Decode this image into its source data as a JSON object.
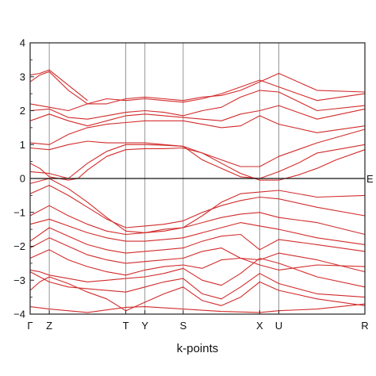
{
  "chart_data": {
    "type": "line",
    "title": "",
    "xlabel": "k-points",
    "ylabel": "",
    "ylim": [
      -4,
      4
    ],
    "yticks": [
      -4,
      -3,
      -2,
      -1,
      0,
      1,
      2,
      3,
      4
    ],
    "k_points": [
      {
        "label": "Γ",
        "x": 0
      },
      {
        "label": "Z",
        "x": 1
      },
      {
        "label": "T",
        "x": 5
      },
      {
        "label": "Y",
        "x": 6
      },
      {
        "label": "S",
        "x": 8
      },
      {
        "label": "X",
        "x": 12
      },
      {
        "label": "U",
        "x": 13
      },
      {
        "label": "R",
        "x": 17.5
      }
    ],
    "fermi_level": {
      "label": "E",
      "value": 0
    },
    "line_color": "#d22b2b",
    "bands": [
      [
        [
          0,
          -3.78
        ],
        [
          1,
          -3.85
        ],
        [
          3,
          -3.95
        ],
        [
          5,
          -3.8
        ],
        [
          6,
          -3.78
        ],
        [
          8,
          -3.85
        ],
        [
          10,
          -3.92
        ],
        [
          12,
          -3.95
        ],
        [
          13,
          -3.9
        ],
        [
          15,
          -3.85
        ],
        [
          17.5,
          -3.7
        ]
      ],
      [
        [
          0,
          -3.3
        ],
        [
          0.5,
          -3.05
        ],
        [
          1,
          -2.9
        ],
        [
          2,
          -3.1
        ],
        [
          3,
          -3.35
        ],
        [
          4,
          -3.55
        ],
        [
          5,
          -3.9
        ],
        [
          6,
          -3.65
        ],
        [
          7,
          -3.4
        ],
        [
          8,
          -3.2
        ],
        [
          9,
          -3.6
        ],
        [
          10,
          -3.75
        ],
        [
          11,
          -3.5
        ],
        [
          12,
          -3.05
        ],
        [
          13,
          -3.3
        ],
        [
          15,
          -3.55
        ],
        [
          17.5,
          -3.75
        ]
      ],
      [
        [
          0,
          -2.75
        ],
        [
          0.5,
          -2.9
        ],
        [
          1,
          -3.05
        ],
        [
          2,
          -3.2
        ],
        [
          4,
          -3.3
        ],
        [
          5,
          -3.35
        ],
        [
          6,
          -3.2
        ],
        [
          7,
          -3.05
        ],
        [
          8,
          -2.95
        ],
        [
          9,
          -3.4
        ],
        [
          10,
          -3.55
        ],
        [
          11,
          -3.2
        ],
        [
          12,
          -2.8
        ],
        [
          13,
          -3.1
        ],
        [
          15,
          -3.4
        ],
        [
          17.5,
          -3.5
        ]
      ],
      [
        [
          0,
          -2.7
        ],
        [
          0.5,
          -2.75
        ],
        [
          1,
          -2.85
        ],
        [
          2,
          -2.95
        ],
        [
          3,
          -3.05
        ],
        [
          4,
          -3.0
        ],
        [
          5,
          -2.95
        ],
        [
          6,
          -2.9
        ],
        [
          7,
          -2.8
        ],
        [
          8,
          -2.65
        ],
        [
          9,
          -3.0
        ],
        [
          10,
          -3.15
        ],
        [
          11,
          -2.8
        ],
        [
          12,
          -2.35
        ],
        [
          13,
          -2.5
        ],
        [
          15,
          -2.9
        ],
        [
          17.5,
          -3.2
        ]
      ],
      [
        [
          0,
          -2.35
        ],
        [
          1,
          -2.1
        ],
        [
          2,
          -2.4
        ],
        [
          3,
          -2.6
        ],
        [
          4,
          -2.75
        ],
        [
          5,
          -2.85
        ],
        [
          6,
          -2.7
        ],
        [
          7,
          -2.6
        ],
        [
          8,
          -2.55
        ],
        [
          9,
          -2.65
        ],
        [
          10,
          -2.4
        ],
        [
          11,
          -2.35
        ],
        [
          12,
          -2.55
        ],
        [
          13,
          -2.7
        ],
        [
          15,
          -2.55
        ],
        [
          17.5,
          -2.6
        ]
      ],
      [
        [
          0,
          -2.05
        ],
        [
          1,
          -1.75
        ],
        [
          2,
          -2.0
        ],
        [
          3,
          -2.25
        ],
        [
          4,
          -2.4
        ],
        [
          5,
          -2.5
        ],
        [
          6,
          -2.45
        ],
        [
          7,
          -2.4
        ],
        [
          8,
          -2.35
        ],
        [
          9,
          -2.15
        ],
        [
          10,
          -2.05
        ],
        [
          11,
          -2.35
        ],
        [
          12,
          -2.4
        ],
        [
          13,
          -2.2
        ],
        [
          15,
          -2.4
        ],
        [
          17.5,
          -2.75
        ]
      ],
      [
        [
          0,
          -1.85
        ],
        [
          1,
          -1.45
        ],
        [
          2,
          -1.7
        ],
        [
          3,
          -1.95
        ],
        [
          4,
          -2.1
        ],
        [
          5,
          -2.2
        ],
        [
          6,
          -2.15
        ],
        [
          7,
          -2.1
        ],
        [
          8,
          -2.05
        ],
        [
          9,
          -1.85
        ],
        [
          10,
          -1.7
        ],
        [
          11,
          -1.65
        ],
        [
          12,
          -2.1
        ],
        [
          13,
          -1.8
        ],
        [
          15,
          -1.95
        ],
        [
          17.5,
          -2.15
        ]
      ],
      [
        [
          0,
          -1.35
        ],
        [
          1,
          -1.2
        ],
        [
          2,
          -1.4
        ],
        [
          3,
          -1.6
        ],
        [
          4,
          -1.75
        ],
        [
          5,
          -1.85
        ],
        [
          6,
          -1.85
        ],
        [
          7,
          -1.8
        ],
        [
          8,
          -1.75
        ],
        [
          9,
          -1.6
        ],
        [
          10,
          -1.45
        ],
        [
          11,
          -1.3
        ],
        [
          12,
          -1.4
        ],
        [
          13,
          -1.5
        ],
        [
          15,
          -1.75
        ],
        [
          17.5,
          -1.95
        ]
      ],
      [
        [
          0,
          -1.1
        ],
        [
          1,
          -0.8
        ],
        [
          2,
          -1.1
        ],
        [
          3,
          -1.35
        ],
        [
          4,
          -1.55
        ],
        [
          5,
          -1.65
        ],
        [
          6,
          -1.6
        ],
        [
          7,
          -1.55
        ],
        [
          8,
          -1.45
        ],
        [
          9,
          -1.3
        ],
        [
          10,
          -1.15
        ],
        [
          11,
          -1.05
        ],
        [
          12,
          -1.0
        ],
        [
          13,
          -1.15
        ],
        [
          15,
          -1.3
        ],
        [
          17.5,
          -1.65
        ]
      ],
      [
        [
          0,
          -0.45
        ],
        [
          1,
          -0.2
        ],
        [
          2,
          -0.5
        ],
        [
          3,
          -0.85
        ],
        [
          4,
          -1.2
        ],
        [
          5,
          -1.45
        ],
        [
          6,
          -1.4
        ],
        [
          7,
          -1.35
        ],
        [
          8,
          -1.25
        ],
        [
          9,
          -1.0
        ],
        [
          10,
          -0.8
        ],
        [
          11,
          -0.65
        ],
        [
          12,
          -0.55
        ],
        [
          13,
          -0.6
        ],
        [
          15,
          -0.85
        ],
        [
          17.5,
          -1.1
        ]
      ],
      [
        [
          0,
          -0.15
        ],
        [
          1,
          0.0
        ],
        [
          2,
          -0.3
        ],
        [
          3,
          -0.7
        ],
        [
          4,
          -1.15
        ],
        [
          5,
          -1.55
        ],
        [
          6,
          -1.6
        ],
        [
          7,
          -1.5
        ],
        [
          8,
          -1.45
        ],
        [
          9,
          -1.1
        ],
        [
          10,
          -0.7
        ],
        [
          11,
          -0.45
        ],
        [
          12,
          -0.4
        ],
        [
          13,
          -0.35
        ],
        [
          15,
          -0.55
        ],
        [
          17.5,
          -0.5
        ]
      ],
      [
        [
          0,
          0.45
        ],
        [
          0.5,
          0.3
        ],
        [
          1,
          0.05
        ],
        [
          2,
          -0.05
        ],
        [
          2.5,
          0.0
        ],
        [
          3,
          0.25
        ],
        [
          4,
          0.65
        ],
        [
          5,
          0.85
        ],
        [
          6,
          0.88
        ],
        [
          7,
          0.88
        ],
        [
          8,
          0.9
        ],
        [
          9,
          0.75
        ],
        [
          10,
          0.45
        ],
        [
          11,
          0.15
        ],
        [
          12,
          -0.05
        ],
        [
          13,
          -0.05
        ],
        [
          14,
          0.1
        ],
        [
          15,
          0.3
        ],
        [
          16,
          0.55
        ],
        [
          17.5,
          0.85
        ]
      ],
      [
        [
          0,
          0.2
        ],
        [
          1,
          0.15
        ],
        [
          2,
          0.0
        ],
        [
          3,
          0.45
        ],
        [
          4,
          0.8
        ],
        [
          5,
          1.0
        ],
        [
          6,
          1.0
        ],
        [
          7,
          0.98
        ],
        [
          8,
          0.95
        ],
        [
          9,
          0.55
        ],
        [
          10,
          0.3
        ],
        [
          11,
          0.05
        ],
        [
          12,
          0.0
        ],
        [
          13,
          0.2
        ],
        [
          14,
          0.45
        ],
        [
          15,
          0.75
        ],
        [
          17.5,
          1.0
        ]
      ],
      [
        [
          0,
          0.9
        ],
        [
          1,
          0.85
        ],
        [
          2,
          1.0
        ],
        [
          3,
          1.1
        ],
        [
          4,
          1.05
        ],
        [
          5,
          1.05
        ],
        [
          6,
          1.05
        ],
        [
          7,
          1.0
        ],
        [
          8,
          0.95
        ],
        [
          9,
          0.75
        ],
        [
          10,
          0.55
        ],
        [
          11,
          0.35
        ],
        [
          12,
          0.35
        ],
        [
          13,
          0.65
        ],
        [
          15,
          1.05
        ],
        [
          17.5,
          1.45
        ]
      ],
      [
        [
          0,
          1.05
        ],
        [
          1,
          1.0
        ],
        [
          2,
          1.3
        ],
        [
          3,
          1.5
        ],
        [
          4,
          1.6
        ],
        [
          5,
          1.65
        ],
        [
          6,
          1.7
        ],
        [
          7,
          1.7
        ],
        [
          8,
          1.7
        ],
        [
          9,
          1.6
        ],
        [
          10,
          1.5
        ],
        [
          11,
          1.55
        ],
        [
          12,
          1.85
        ],
        [
          13,
          1.6
        ],
        [
          15,
          1.35
        ],
        [
          17.5,
          1.55
        ]
      ],
      [
        [
          0,
          1.7
        ],
        [
          1,
          1.9
        ],
        [
          2,
          1.7
        ],
        [
          3,
          1.55
        ],
        [
          4,
          1.7
        ],
        [
          5,
          1.85
        ],
        [
          6,
          1.9
        ],
        [
          7,
          1.85
        ],
        [
          8,
          1.8
        ],
        [
          9,
          1.75
        ],
        [
          10,
          1.7
        ],
        [
          11,
          1.9
        ],
        [
          12,
          2.0
        ],
        [
          13,
          2.15
        ],
        [
          15,
          1.75
        ],
        [
          17.5,
          2.05
        ]
      ],
      [
        [
          0,
          2.0
        ],
        [
          1,
          2.05
        ],
        [
          2,
          1.8
        ],
        [
          3,
          1.75
        ],
        [
          4,
          1.85
        ],
        [
          5,
          1.95
        ],
        [
          6,
          2.0
        ],
        [
          7,
          1.95
        ],
        [
          8,
          1.85
        ],
        [
          9,
          2.0
        ],
        [
          10,
          2.1
        ],
        [
          11,
          2.4
        ],
        [
          12,
          2.6
        ],
        [
          13,
          2.55
        ],
        [
          15,
          2.0
        ],
        [
          17.5,
          2.15
        ]
      ],
      [
        [
          0,
          2.2
        ],
        [
          1,
          2.1
        ],
        [
          2,
          2.0
        ],
        [
          3,
          2.2
        ],
        [
          4,
          2.35
        ],
        [
          5,
          2.3
        ],
        [
          6,
          2.35
        ],
        [
          7,
          2.3
        ],
        [
          8,
          2.25
        ],
        [
          9,
          2.35
        ],
        [
          10,
          2.5
        ],
        [
          11,
          2.7
        ],
        [
          12,
          2.9
        ],
        [
          13,
          2.7
        ],
        [
          15,
          2.3
        ],
        [
          17.5,
          2.5
        ]
      ],
      [
        [
          0,
          2.85
        ],
        [
          0.5,
          3.05
        ],
        [
          1,
          3.15
        ],
        [
          2,
          2.6
        ],
        [
          3,
          2.2
        ],
        [
          4,
          2.2
        ],
        [
          5,
          2.35
        ],
        [
          6,
          2.4
        ],
        [
          7,
          2.35
        ],
        [
          8,
          2.3
        ],
        [
          9,
          2.4
        ],
        [
          10,
          2.45
        ],
        [
          11,
          2.6
        ],
        [
          12,
          2.85
        ],
        [
          13,
          3.1
        ],
        [
          15,
          2.6
        ],
        [
          17.5,
          2.55
        ]
      ],
      [
        [
          0,
          3.05
        ],
        [
          0.5,
          3.1
        ],
        [
          1,
          3.2
        ],
        [
          2,
          2.75
        ],
        [
          3,
          2.3
        ]
      ]
    ]
  }
}
